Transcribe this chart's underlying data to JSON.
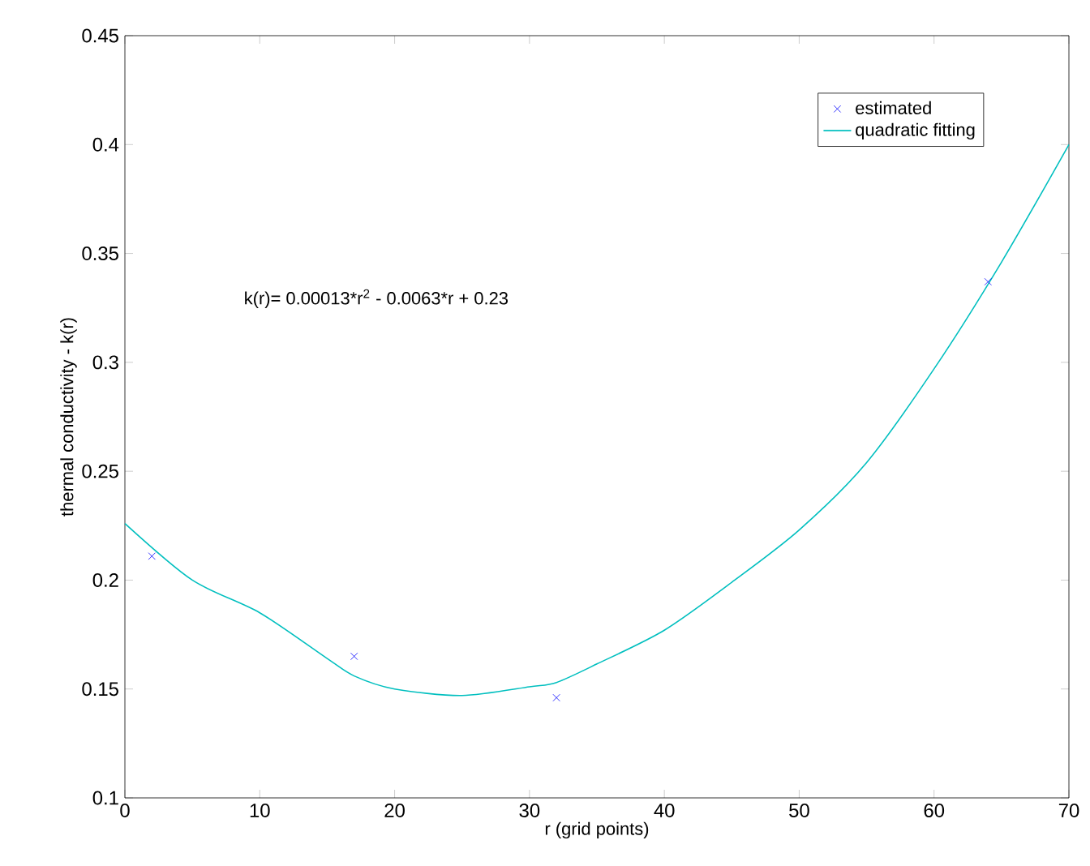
{
  "chart_data": {
    "type": "scatter",
    "xlabel": "r  (grid points)",
    "ylabel": "thermal conductivity - k(r)",
    "annotations": [
      "k(r)= 0.00013*r$^{2}$ - 0.0063*r + 0.23"
    ],
    "xlim": [
      0,
      70
    ],
    "ylim": [
      0.1,
      0.45
    ],
    "xticks": [
      0,
      10,
      20,
      30,
      40,
      50,
      60,
      70
    ],
    "yticks": [
      0.1,
      0.15,
      0.2,
      0.25,
      0.3,
      0.35,
      0.4,
      0.45
    ],
    "legend": "top right",
    "grid": false,
    "series": [
      {
        "name": "estimated",
        "marker": "cross",
        "color": "#0000ff",
        "x": [
          2,
          17,
          32,
          64
        ],
        "values": [
          0.211,
          0.165,
          0.146,
          0.337
        ]
      },
      {
        "name": "quadratic fitting",
        "type": "line",
        "marker": "none",
        "line_style": "solid",
        "color": "#00bfbf",
        "x": [
          0,
          5,
          10,
          15,
          17,
          20,
          25,
          30,
          32,
          35,
          40,
          45,
          50,
          55,
          60,
          65,
          70
        ],
        "values": [
          0.226,
          0.2,
          0.185,
          0.164,
          0.156,
          0.15,
          0.147,
          0.151,
          0.153,
          0.1615,
          0.177,
          0.199,
          0.223,
          0.254,
          0.297,
          0.346,
          0.4
        ]
      }
    ]
  }
}
